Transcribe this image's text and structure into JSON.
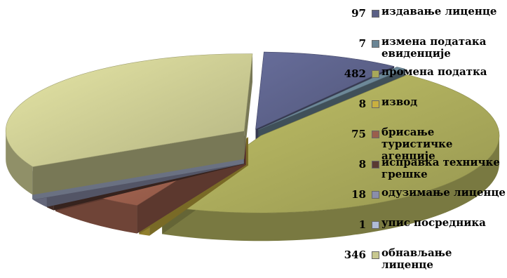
{
  "chart_data": {
    "type": "pie",
    "title": "",
    "categories": [
      "издавање лиценце",
      "измена података евиденције",
      "промена податка",
      "извод",
      "брисање туристичке агенције",
      "исправка техничке грешке",
      "одузимање лиценце",
      "упис посредника",
      "обнављање лиценце"
    ],
    "values": [
      97,
      7,
      482,
      8,
      75,
      8,
      18,
      1,
      346
    ],
    "colors": [
      "#5a5f86",
      "#6a8595",
      "#a8a85a",
      "#c9b040",
      "#9a5e4c",
      "#5a3a32",
      "#8a8eaa",
      "#b0bcd8",
      "#c8c890"
    ],
    "legend": {
      "position": "right"
    }
  }
}
